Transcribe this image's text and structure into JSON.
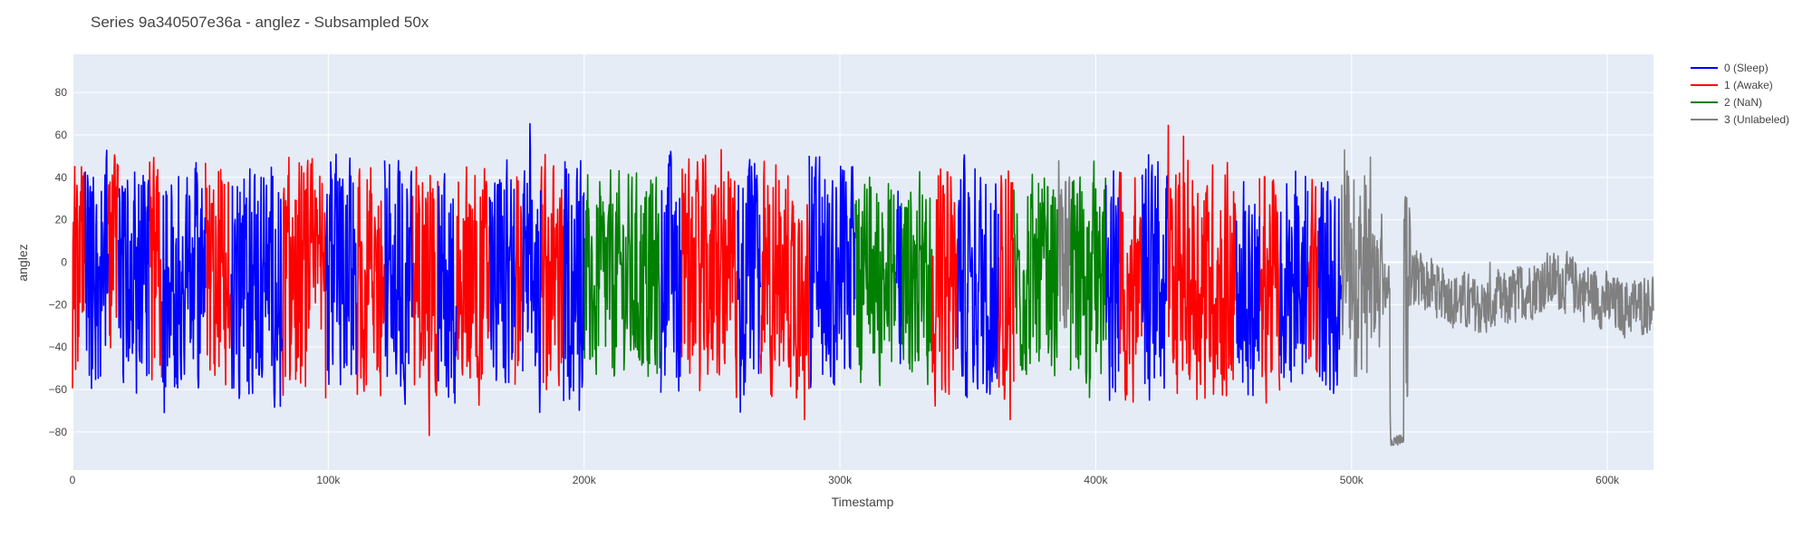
{
  "chart_data": {
    "type": "line",
    "title": "Series 9a340507e36a - anglez - Subsampled 50x",
    "xlabel": "Timestamp",
    "ylabel": "anglez",
    "xlim": [
      0,
      618000
    ],
    "ylim": [
      -98,
      98
    ],
    "x_ticks": [
      {
        "value": 0,
        "label": "0"
      },
      {
        "value": 100000,
        "label": "100k"
      },
      {
        "value": 200000,
        "label": "200k"
      },
      {
        "value": 300000,
        "label": "300k"
      },
      {
        "value": 400000,
        "label": "400k"
      },
      {
        "value": 500000,
        "label": "500k"
      },
      {
        "value": 600000,
        "label": "600k"
      }
    ],
    "y_ticks": [
      {
        "value": -80,
        "label": "−80"
      },
      {
        "value": -60,
        "label": "−60"
      },
      {
        "value": -40,
        "label": "−40"
      },
      {
        "value": -20,
        "label": "−20"
      },
      {
        "value": 0,
        "label": "0"
      },
      {
        "value": 20,
        "label": "20"
      },
      {
        "value": 40,
        "label": "40"
      },
      {
        "value": 60,
        "label": "60"
      },
      {
        "value": 80,
        "label": "80"
      }
    ],
    "grid": true,
    "legend_position": "top-right",
    "plot_background": "#E5ECF6",
    "series": [
      {
        "name": "0 (Sleep)",
        "color": "#0000FF",
        "segments": [
          [
            5000,
            14000
          ],
          [
            18000,
            30000
          ],
          [
            35000,
            52000
          ],
          [
            62000,
            82000
          ],
          [
            99000,
            111000
          ],
          [
            122000,
            133000
          ],
          [
            143000,
            150000
          ],
          [
            163000,
            173000
          ],
          [
            176000,
            183000
          ],
          [
            192000,
            200000
          ],
          [
            230000,
            238000
          ],
          [
            260000,
            269000
          ],
          [
            288000,
            306000
          ],
          [
            322000,
            324000
          ],
          [
            346000,
            362000
          ],
          [
            404000,
            409000
          ],
          [
            418000,
            428000
          ],
          [
            455000,
            464000
          ],
          [
            472000,
            483000
          ],
          [
            487000,
            496000
          ]
        ]
      },
      {
        "name": "1 (Awake)",
        "color": "#FF0000",
        "segments": [
          [
            0,
            5000
          ],
          [
            14000,
            18000
          ],
          [
            30000,
            35000
          ],
          [
            52000,
            62000
          ],
          [
            82000,
            99000
          ],
          [
            111000,
            122000
          ],
          [
            133000,
            143000
          ],
          [
            150000,
            163000
          ],
          [
            173000,
            176000
          ],
          [
            183000,
            192000
          ],
          [
            238000,
            260000
          ],
          [
            269000,
            288000
          ],
          [
            336000,
            346000
          ],
          [
            362000,
            368000
          ],
          [
            409000,
            418000
          ],
          [
            428000,
            455000
          ],
          [
            464000,
            472000
          ],
          [
            483000,
            487000
          ]
        ]
      },
      {
        "name": "2 (NaN)",
        "color": "#008000",
        "segments": [
          [
            200000,
            230000
          ],
          [
            306000,
            322000
          ],
          [
            324000,
            336000
          ],
          [
            368000,
            385000
          ],
          [
            390000,
            404000
          ]
        ]
      },
      {
        "name": "3 (Unlabeled)",
        "color": "#808080",
        "segments": [
          [
            385000,
            390000
          ],
          [
            496000,
            618000
          ]
        ]
      }
    ]
  }
}
